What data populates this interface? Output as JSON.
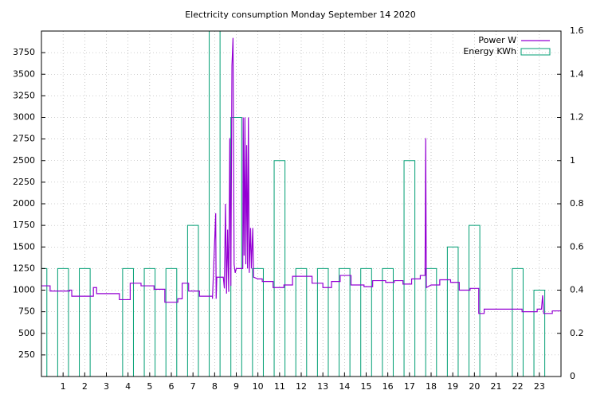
{
  "chart_data": {
    "type": "combo",
    "title": "Electricity consumption Monday September 14 2020",
    "xlim": [
      0,
      24
    ],
    "xticks": [
      1,
      2,
      3,
      4,
      5,
      6,
      7,
      8,
      9,
      10,
      11,
      12,
      13,
      14,
      15,
      16,
      17,
      18,
      19,
      20,
      21,
      22,
      23
    ],
    "ylim": [
      0,
      4000
    ],
    "yticks": [
      250,
      500,
      750,
      1000,
      1250,
      1500,
      1750,
      2000,
      2250,
      2500,
      2750,
      3000,
      3250,
      3500,
      3750
    ],
    "y2lim": [
      0,
      1.6
    ],
    "y2ticks": [
      0,
      0.2,
      0.4,
      0.6,
      0.8,
      1,
      1.2,
      1.4,
      1.6
    ],
    "grid": true,
    "legend": "top-right",
    "series": [
      {
        "name": "Power W",
        "type": "line",
        "color": "#9400d3",
        "x": [
          0,
          0.4,
          0.4,
          1.3,
          1.3,
          1.4,
          1.4,
          2.4,
          2.4,
          2.55,
          2.55,
          3.6,
          3.6,
          4.1,
          4.1,
          4.6,
          4.6,
          5.2,
          5.2,
          5.7,
          5.7,
          6.3,
          6.3,
          6.5,
          6.5,
          6.8,
          6.8,
          7.3,
          7.3,
          7.9,
          7.9,
          8.05,
          8.07,
          8.1,
          8.1,
          8.4,
          8.45,
          8.5,
          8.55,
          8.6,
          8.65,
          8.7,
          8.75,
          8.8,
          8.85,
          8.9,
          8.95,
          9.0,
          9.1,
          9.3,
          9.32,
          9.36,
          9.4,
          9.44,
          9.48,
          9.52,
          9.56,
          9.6,
          9.66,
          9.7,
          9.76,
          9.8,
          10.0,
          10.2,
          10.2,
          10.7,
          10.7,
          11.2,
          11.2,
          11.6,
          11.6,
          12.5,
          12.5,
          13.0,
          13.0,
          13.4,
          13.4,
          13.8,
          13.8,
          14.3,
          14.3,
          14.9,
          14.9,
          15.3,
          15.3,
          15.9,
          15.9,
          16.3,
          16.3,
          16.7,
          16.7,
          17.1,
          17.1,
          17.5,
          17.5,
          17.72,
          17.75,
          17.78,
          17.78,
          18.0,
          18.0,
          18.4,
          18.4,
          18.9,
          18.9,
          19.3,
          19.3,
          19.8,
          19.8,
          20.2,
          20.2,
          20.45,
          20.45,
          22.2,
          22.2,
          22.9,
          22.9,
          23.1,
          23.15,
          23.2,
          23.2,
          23.6,
          23.6,
          24
        ],
        "values": [
          1050,
          1050,
          990,
          990,
          1000,
          1000,
          930,
          930,
          1030,
          1030,
          960,
          960,
          890,
          890,
          1080,
          1080,
          1050,
          1050,
          1010,
          1010,
          860,
          860,
          900,
          900,
          1080,
          1080,
          990,
          990,
          930,
          930,
          900,
          1890,
          900,
          1150,
          1150,
          1150,
          1020,
          2000,
          960,
          1700,
          980,
          2760,
          1050,
          3600,
          3920,
          1300,
          1200,
          1250,
          1250,
          1250,
          3000,
          1400,
          3000,
          1300,
          2680,
          1250,
          3000,
          1200,
          1720,
          1250,
          1720,
          1150,
          1130,
          1130,
          1100,
          1100,
          1030,
          1030,
          1060,
          1060,
          1160,
          1160,
          1080,
          1080,
          1030,
          1030,
          1100,
          1100,
          1170,
          1170,
          1060,
          1060,
          1040,
          1040,
          1110,
          1110,
          1090,
          1090,
          1110,
          1110,
          1070,
          1070,
          1130,
          1130,
          1170,
          1170,
          2760,
          1030,
          1030,
          1060,
          1060,
          1060,
          1120,
          1120,
          1090,
          1090,
          1000,
          1000,
          1020,
          1020,
          730,
          730,
          780,
          780,
          750,
          750,
          780,
          780,
          940,
          730,
          730,
          730,
          760,
          760
        ]
      },
      {
        "name": "Energy KWh",
        "type": "box",
        "axis": "y2",
        "color": "#009e73",
        "x": [
          0,
          1,
          2,
          3,
          4,
          5,
          6,
          7,
          8,
          9,
          10,
          11,
          12,
          13,
          14,
          15,
          16,
          17,
          18,
          19,
          20,
          21,
          22,
          23
        ],
        "values": [
          0.5,
          0.5,
          0.5,
          0,
          0.5,
          0.5,
          0.5,
          0.7,
          1.6,
          1.2,
          0.5,
          1,
          0.5,
          0.5,
          0.5,
          0.5,
          0.5,
          1,
          0.5,
          0.6,
          0.7,
          0,
          0.5,
          0.4
        ]
      }
    ]
  }
}
